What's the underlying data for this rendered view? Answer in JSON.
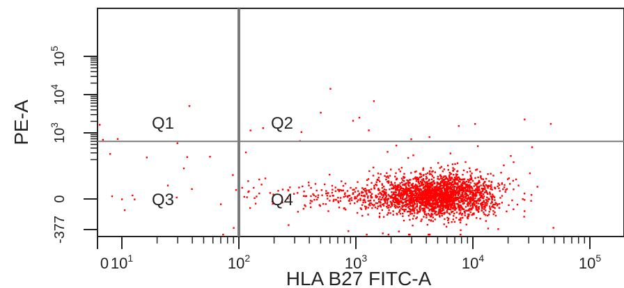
{
  "chart_data": {
    "type": "scatter",
    "title": "",
    "xlabel": "HLA B27 FITC-A",
    "ylabel": "PE-A",
    "x_scale": "log",
    "y_scale": "log",
    "x_ticks": [
      {
        "prefix": "0",
        "exp": ""
      },
      {
        "prefix": "10",
        "exp": "1"
      },
      {
        "prefix": "10",
        "exp": "2"
      },
      {
        "prefix": "10",
        "exp": "3"
      },
      {
        "prefix": "10",
        "exp": "4"
      },
      {
        "prefix": "10",
        "exp": "5"
      }
    ],
    "y_ticks": [
      {
        "prefix": "-377",
        "exp": ""
      },
      {
        "prefix": "0",
        "exp": ""
      },
      {
        "prefix": "10",
        "exp": "3"
      },
      {
        "prefix": "10",
        "exp": "4"
      },
      {
        "prefix": "10",
        "exp": "5"
      }
    ],
    "quadrants": [
      "Q1",
      "Q2",
      "Q3",
      "Q4"
    ],
    "gate": {
      "x": 100,
      "y": 600
    },
    "point_color": "#ff0000",
    "gate_color": "#7a7a7a",
    "population": {
      "center_x": 6000,
      "center_y": 15,
      "n_points": 2600
    },
    "grid": false
  }
}
